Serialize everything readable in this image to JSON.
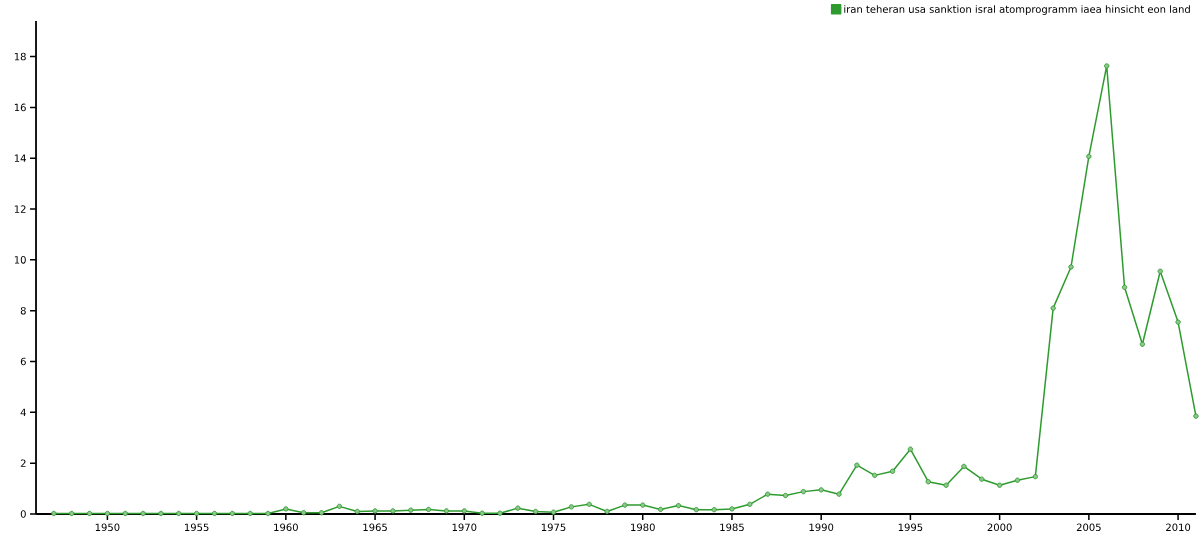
{
  "chart_data": {
    "type": "line",
    "x": [
      1947,
      1948,
      1949,
      1950,
      1951,
      1952,
      1953,
      1954,
      1955,
      1956,
      1957,
      1958,
      1959,
      1960,
      1961,
      1962,
      1963,
      1964,
      1965,
      1966,
      1967,
      1968,
      1969,
      1970,
      1971,
      1972,
      1973,
      1974,
      1975,
      1976,
      1977,
      1978,
      1979,
      1980,
      1981,
      1982,
      1983,
      1984,
      1985,
      1986,
      1987,
      1988,
      1989,
      1990,
      1991,
      1992,
      1993,
      1994,
      1995,
      1996,
      1997,
      1998,
      1999,
      2000,
      2001,
      2002,
      2003,
      2004,
      2005,
      2006,
      2007,
      2008,
      2009,
      2010,
      2011
    ],
    "series": [
      {
        "name": "iran teheran usa sanktion isral atomprogramm iaea hinsicht eon land",
        "color": "#2e9b2e",
        "values": [
          0.02,
          0.02,
          0.02,
          0.02,
          0.02,
          0.02,
          0.02,
          0.02,
          0.02,
          0.02,
          0.02,
          0.02,
          0.02,
          0.2,
          0.05,
          0.05,
          0.3,
          0.1,
          0.12,
          0.12,
          0.15,
          0.18,
          0.12,
          0.12,
          0.03,
          0.03,
          0.23,
          0.1,
          0.07,
          0.28,
          0.38,
          0.1,
          0.35,
          0.35,
          0.18,
          0.33,
          0.17,
          0.17,
          0.2,
          0.38,
          0.78,
          0.73,
          0.88,
          0.95,
          0.78,
          1.92,
          1.52,
          1.68,
          2.55,
          1.27,
          1.13,
          1.87,
          1.37,
          1.13,
          1.33,
          1.47,
          8.1,
          9.72,
          14.07,
          17.63,
          8.92,
          6.68,
          9.55,
          7.55,
          3.85
        ]
      }
    ],
    "xlim": [
      1946,
      2011
    ],
    "ylim": [
      0,
      19.4
    ],
    "xticks": [
      1950,
      1955,
      1960,
      1965,
      1970,
      1975,
      1980,
      1985,
      1990,
      1995,
      2000,
      2005,
      2010
    ],
    "yticks": [
      0,
      2,
      4,
      6,
      8,
      10,
      12,
      14,
      16,
      18
    ],
    "legend": "top right",
    "marker": "circle",
    "line_style": "solid",
    "grid": false
  }
}
